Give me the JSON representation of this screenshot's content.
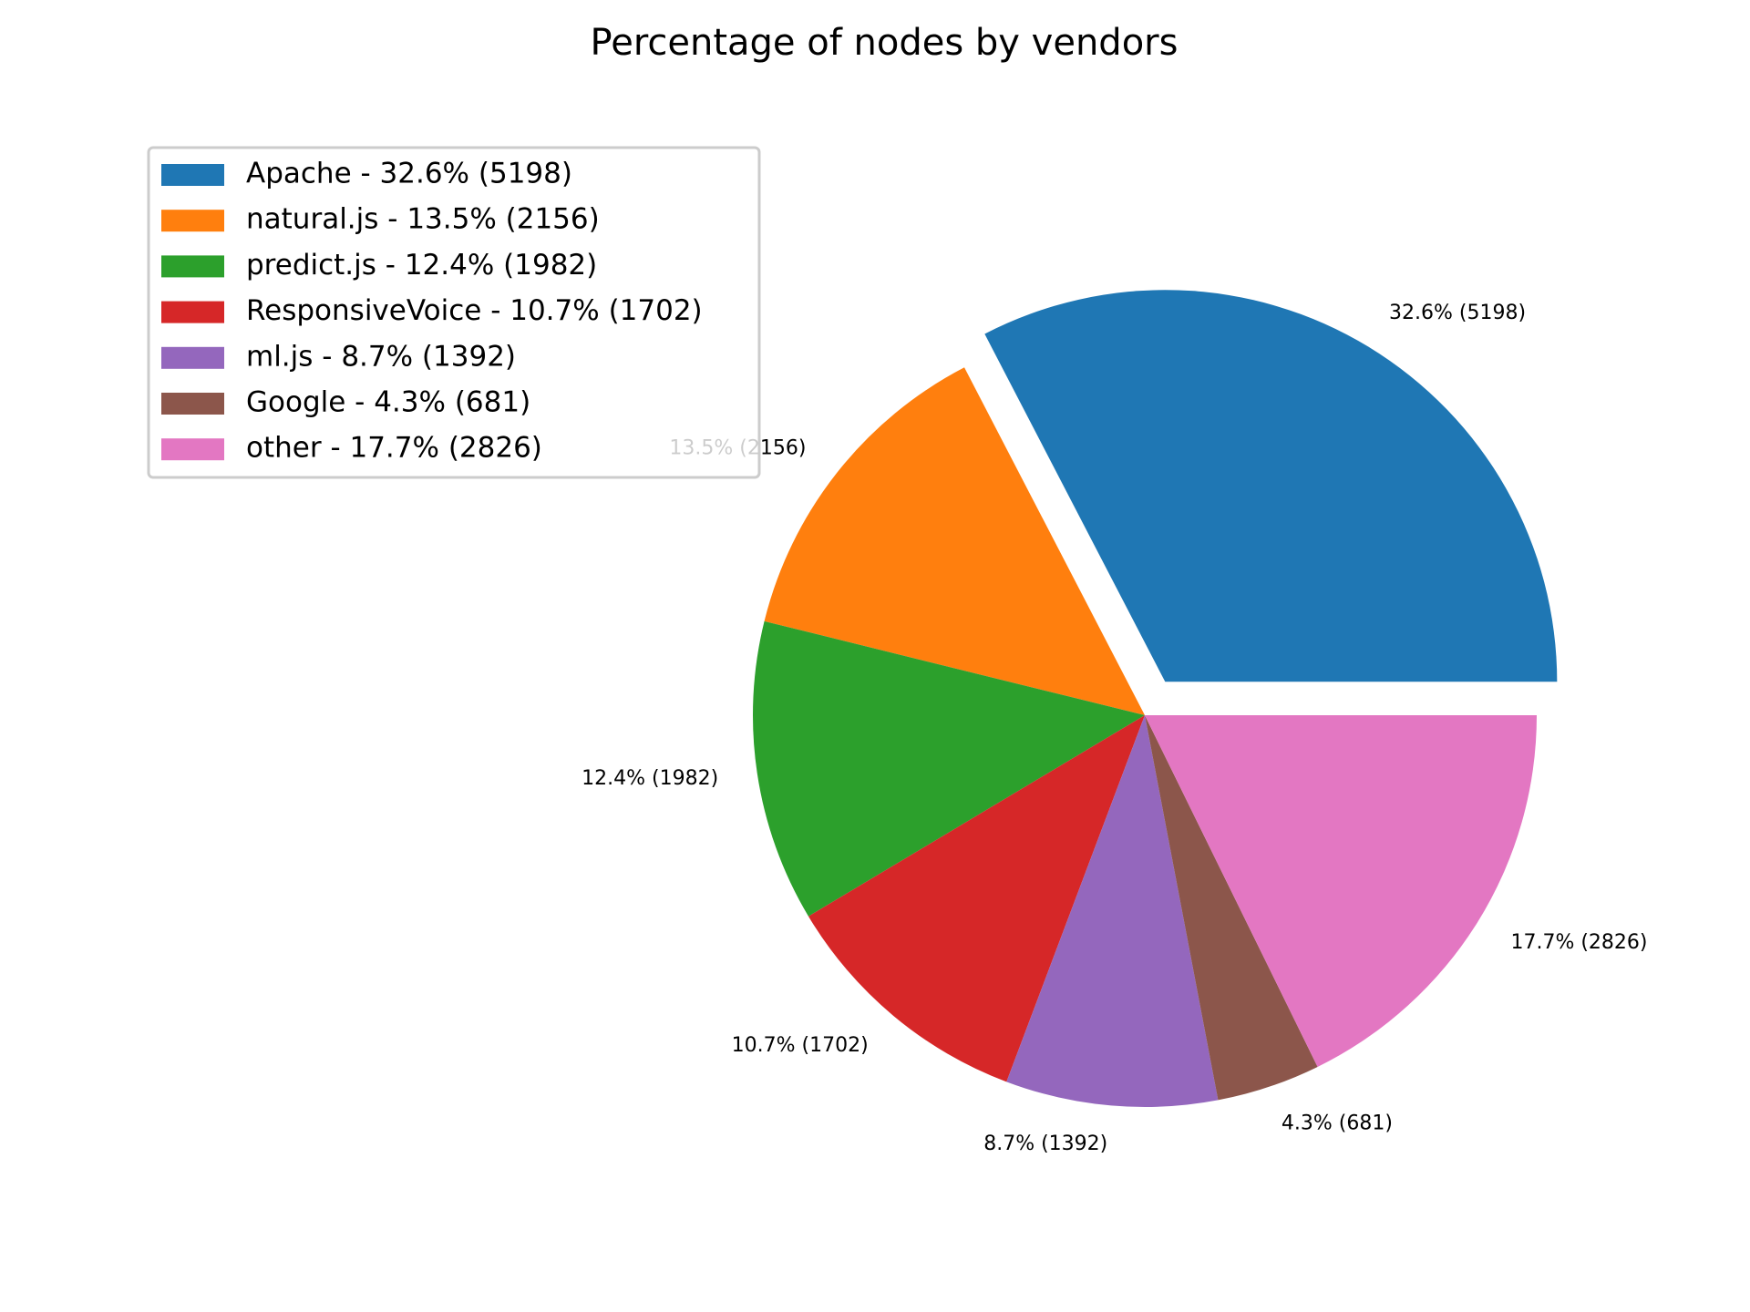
{
  "chart_data": {
    "type": "pie",
    "title": "Percentage of nodes by vendors",
    "slices": [
      {
        "label": "Apache",
        "percent": 32.6,
        "count": 5198,
        "color": "#1f77b4",
        "exploded": true
      },
      {
        "label": "natural.js",
        "percent": 13.5,
        "count": 2156,
        "color": "#ff7f0e",
        "exploded": false
      },
      {
        "label": "predict.js",
        "percent": 12.4,
        "count": 1982,
        "color": "#2ca02c",
        "exploded": false
      },
      {
        "label": "ResponsiveVoice",
        "percent": 10.7,
        "count": 1702,
        "color": "#d62728",
        "exploded": false
      },
      {
        "label": "ml.js",
        "percent": 8.7,
        "count": 1392,
        "color": "#9467bd",
        "exploded": false
      },
      {
        "label": "Google",
        "percent": 4.3,
        "count": 681,
        "color": "#8c564b",
        "exploded": false
      },
      {
        "label": "other",
        "percent": 17.7,
        "count": 2826,
        "color": "#e377c2",
        "exploded": false
      }
    ],
    "slice_labels": [
      "32.6% (5198)",
      "13.5% (2156)",
      "12.4% (1982)",
      "10.7% (1702)",
      "8.7% (1392)",
      "4.3% (681)",
      "17.7% (2826)"
    ],
    "legend": {
      "placement": "upper-left",
      "entries": [
        "Apache - 32.6% (5198)",
        "natural.js - 13.5% (2156)",
        "predict.js - 12.4% (1982)",
        "ResponsiveVoice - 10.7% (1702)",
        "ml.js - 8.7% (1392)",
        "Google - 4.3% (681)",
        "other - 17.7% (2826)"
      ]
    },
    "start_angle_deg": 0,
    "direction": "counterclockwise"
  }
}
